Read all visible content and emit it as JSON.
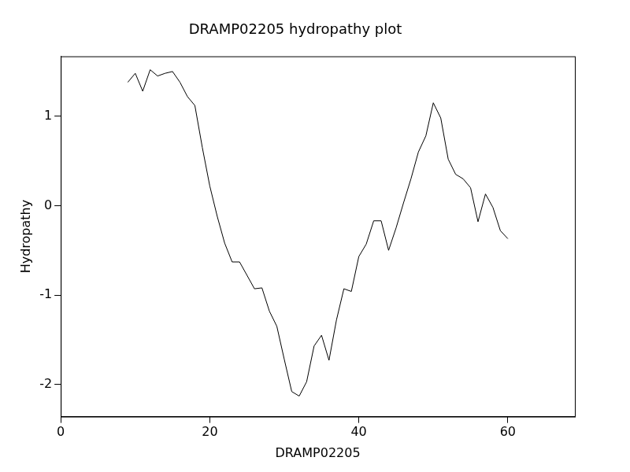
{
  "chart_data": {
    "type": "line",
    "title": "DRAMP02205 hydropathy plot",
    "x_label": "DRAMP02205",
    "y_label": "Hydropathy",
    "x": [
      9,
      10,
      11,
      12,
      13,
      14,
      15,
      16,
      17,
      18,
      19,
      20,
      21,
      22,
      23,
      24,
      25,
      26,
      27,
      28,
      29,
      30,
      31,
      32,
      33,
      34,
      35,
      36,
      37,
      38,
      39,
      40,
      41,
      42,
      43,
      44,
      45,
      46,
      47,
      48,
      49,
      50,
      51,
      52,
      53,
      54,
      55,
      56,
      57,
      58,
      59,
      60
    ],
    "values": [
      1.38,
      1.48,
      1.28,
      1.52,
      1.45,
      1.48,
      1.5,
      1.38,
      1.22,
      1.12,
      0.65,
      0.22,
      -0.12,
      -0.42,
      -0.63,
      -0.63,
      -0.78,
      -0.93,
      -0.92,
      -1.18,
      -1.35,
      -1.72,
      -2.08,
      -2.13,
      -1.97,
      -1.57,
      -1.45,
      -1.73,
      -1.28,
      -0.93,
      -0.96,
      -0.57,
      -0.43,
      -0.17,
      -0.17,
      -0.5,
      -0.25,
      0.03,
      0.3,
      0.6,
      0.78,
      1.15,
      0.98,
      0.52,
      0.35,
      0.3,
      0.2,
      -0.18,
      0.13,
      -0.02,
      -0.28,
      -0.37
    ],
    "color": "#000000",
    "xlim": [
      0,
      69
    ],
    "xticks": [
      0,
      20,
      40,
      60
    ],
    "ylim": [
      -2.36,
      1.67
    ],
    "yticks": [
      -2,
      -1,
      0,
      1
    ],
    "grid": false
  }
}
